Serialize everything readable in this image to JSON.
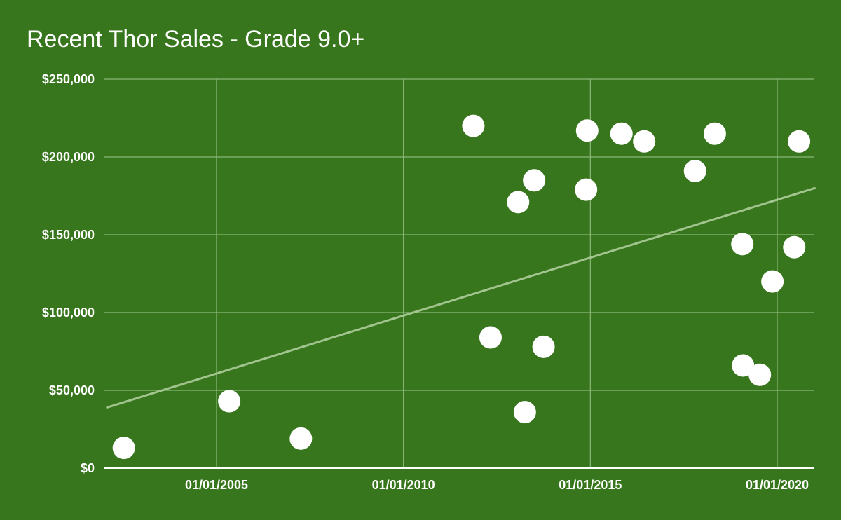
{
  "chart_data": {
    "type": "scatter",
    "title": "Recent Thor Sales - Grade 9.0+",
    "xlabel": "",
    "ylabel": "",
    "x_axis": {
      "kind": "date",
      "range": [
        "2002-01-27",
        "2021-01-01"
      ],
      "ticks": [
        {
          "value": "2005-01-01",
          "label": "01/01/2005"
        },
        {
          "value": "2010-01-01",
          "label": "01/01/2010"
        },
        {
          "value": "2015-01-01",
          "label": "01/01/2015"
        },
        {
          "value": "2020-01-01",
          "label": "01/01/2020"
        }
      ]
    },
    "y_axis": {
      "range": [
        0,
        250000
      ],
      "ticks": [
        {
          "value": 0,
          "label": "$0"
        },
        {
          "value": 50000,
          "label": "$50,000"
        },
        {
          "value": 100000,
          "label": "$100,000"
        },
        {
          "value": 150000,
          "label": "$150,000"
        },
        {
          "value": 200000,
          "label": "$200,000"
        },
        {
          "value": 250000,
          "label": "$250,000"
        }
      ]
    },
    "grid": true,
    "legend": "none",
    "points": [
      {
        "x": "2002-07-10",
        "y": 13000
      },
      {
        "x": "2005-05-05",
        "y": 43000
      },
      {
        "x": "2007-04-05",
        "y": 19000
      },
      {
        "x": "2011-11-15",
        "y": 220000
      },
      {
        "x": "2012-05-01",
        "y": 84000
      },
      {
        "x": "2013-01-25",
        "y": 171000
      },
      {
        "x": "2013-04-01",
        "y": 36000
      },
      {
        "x": "2013-07-01",
        "y": 185000
      },
      {
        "x": "2013-10-01",
        "y": 78000
      },
      {
        "x": "2014-11-20",
        "y": 179000
      },
      {
        "x": "2014-12-01",
        "y": 217000
      },
      {
        "x": "2015-11-01",
        "y": 215000
      },
      {
        "x": "2016-06-10",
        "y": 210000
      },
      {
        "x": "2017-10-20",
        "y": 191000
      },
      {
        "x": "2018-05-01",
        "y": 215000
      },
      {
        "x": "2019-01-25",
        "y": 144000
      },
      {
        "x": "2019-02-01",
        "y": 66000
      },
      {
        "x": "2019-07-15",
        "y": 60000
      },
      {
        "x": "2019-11-15",
        "y": 120000
      },
      {
        "x": "2020-06-15",
        "y": 142000
      },
      {
        "x": "2020-08-01",
        "y": 210000
      }
    ],
    "trendline": {
      "from": {
        "x": "2002-01-27",
        "y": 39000
      },
      "to": {
        "x": "2021-01-01",
        "y": 180000
      }
    },
    "colors": {
      "background": "#38761d",
      "grid": "#8cb87a",
      "axis": "#ffffff",
      "point": "#ffffff",
      "trendline": "#a2c58f",
      "text": "#ffffff"
    }
  }
}
